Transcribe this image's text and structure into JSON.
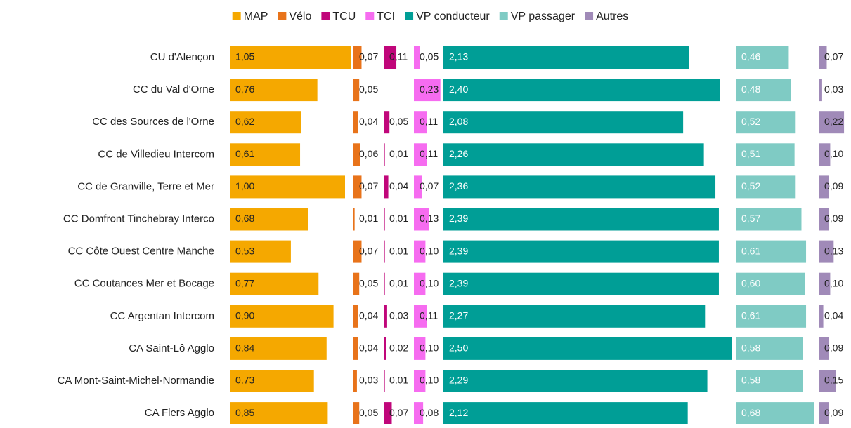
{
  "chart_data": {
    "type": "bar",
    "categories": [
      "CU d'Alençon",
      "CC du Val d'Orne",
      "CC des Sources de l'Orne",
      "CC de Villedieu Intercom",
      "CC de Granville, Terre et Mer",
      "CC Domfront Tinchebray Interco",
      "CC Côte Ouest Centre Manche",
      "CC Coutances Mer et Bocage",
      "CC Argentan Intercom",
      "CA Saint-Lô Agglo",
      "CA Mont-Saint-Michel-Normandie",
      "CA Flers Agglo"
    ],
    "series": [
      {
        "name": "MAP",
        "color": "#f5a800",
        "values": [
          1.05,
          0.76,
          0.62,
          0.61,
          1.0,
          0.68,
          0.53,
          0.77,
          0.9,
          0.84,
          0.73,
          0.85
        ],
        "value_labels": [
          "1,05",
          "0,76",
          "0,62",
          "0,61",
          "1,00",
          "0,68",
          "0,53",
          "0,77",
          "0,90",
          "0,84",
          "0,73",
          "0,85"
        ]
      },
      {
        "name": "Vélo",
        "color": "#e8731a",
        "values": [
          0.07,
          0.05,
          0.04,
          0.06,
          0.07,
          0.01,
          0.07,
          0.05,
          0.04,
          0.04,
          0.03,
          0.05
        ],
        "value_labels": [
          "0,07",
          "0,05",
          "0,04",
          "0,06",
          "0,07",
          "0,01",
          "0,07",
          "0,05",
          "0,04",
          "0,04",
          "0,03",
          "0,05"
        ]
      },
      {
        "name": "TCU",
        "color": "#c0067a",
        "values": [
          0.11,
          null,
          0.05,
          0.01,
          0.04,
          0.01,
          0.01,
          0.01,
          0.03,
          0.02,
          0.01,
          0.07
        ],
        "value_labels": [
          "0,11",
          null,
          "0,05",
          "0,01",
          "0,04",
          "0,01",
          "0,01",
          "0,01",
          "0,03",
          "0,02",
          "0,01",
          "0,07"
        ]
      },
      {
        "name": "TCI",
        "color": "#f66cf0",
        "values": [
          0.05,
          0.23,
          0.11,
          0.11,
          0.07,
          0.13,
          0.1,
          0.1,
          0.11,
          0.1,
          0.1,
          0.08
        ],
        "value_labels": [
          "0,05",
          "0,23",
          "0,11",
          "0,11",
          "0,07",
          "0,13",
          "0,10",
          "0,10",
          "0,11",
          "0,10",
          "0,10",
          "0,08"
        ]
      },
      {
        "name": "VP conducteur",
        "color": "#009e96",
        "values": [
          2.13,
          2.4,
          2.08,
          2.26,
          2.36,
          2.39,
          2.39,
          2.39,
          2.27,
          2.5,
          2.29,
          2.12
        ],
        "value_labels": [
          "2,13",
          "2,40",
          "2,08",
          "2,26",
          "2,36",
          "2,39",
          "2,39",
          "2,39",
          "2,27",
          "2,50",
          "2,29",
          "2,12"
        ]
      },
      {
        "name": "VP passager",
        "color": "#7fcbc4",
        "values": [
          0.46,
          0.48,
          0.52,
          0.51,
          0.52,
          0.57,
          0.61,
          0.6,
          0.61,
          0.58,
          0.58,
          0.68
        ],
        "value_labels": [
          "0,46",
          "0,48",
          "0,52",
          "0,51",
          "0,52",
          "0,57",
          "0,61",
          "0,60",
          "0,61",
          "0,58",
          "0,58",
          "0,68"
        ]
      },
      {
        "name": "Autres",
        "color": "#a08ab8",
        "values": [
          0.07,
          0.03,
          0.22,
          0.1,
          0.09,
          0.09,
          0.13,
          0.1,
          0.04,
          0.09,
          0.15,
          0.09
        ],
        "value_labels": [
          "0,07",
          "0,03",
          "0,22",
          "0,10",
          "0,09",
          "0,09",
          "0,13",
          "0,10",
          "0,04",
          "0,09",
          "0,15",
          "0,09"
        ]
      }
    ],
    "legend": "top"
  }
}
